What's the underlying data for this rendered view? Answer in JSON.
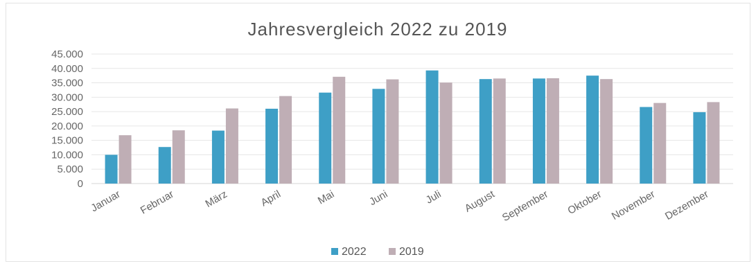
{
  "chart_data": {
    "type": "bar",
    "title": "Jahresvergleich 2022 zu 2019",
    "xlabel": "",
    "ylabel": "",
    "categories": [
      "Januar",
      "Februar",
      "März",
      "April",
      "Mai",
      "Juni",
      "Juli",
      "August",
      "September",
      "Oktober",
      "November",
      "Dezember"
    ],
    "series": [
      {
        "name": "2022",
        "color": "#3e9fc6",
        "values": [
          10000,
          12700,
          18400,
          26000,
          31600,
          32900,
          39300,
          36300,
          36500,
          37500,
          26600,
          24800
        ]
      },
      {
        "name": "2019",
        "color": "#bfaeb5",
        "values": [
          16800,
          18500,
          26100,
          30400,
          37100,
          36200,
          35100,
          36500,
          36600,
          36300,
          28000,
          28300
        ]
      }
    ],
    "ylim": [
      0,
      45000
    ],
    "yticks": [
      "45.000",
      "40.000",
      "35.000",
      "30.000",
      "25.000",
      "20.000",
      "15.000",
      "10.000",
      "5.000",
      "0"
    ],
    "ytick_values": [
      45000,
      40000,
      35000,
      30000,
      25000,
      20000,
      15000,
      10000,
      5000,
      0
    ],
    "grid": true,
    "legend_position": "bottom"
  }
}
